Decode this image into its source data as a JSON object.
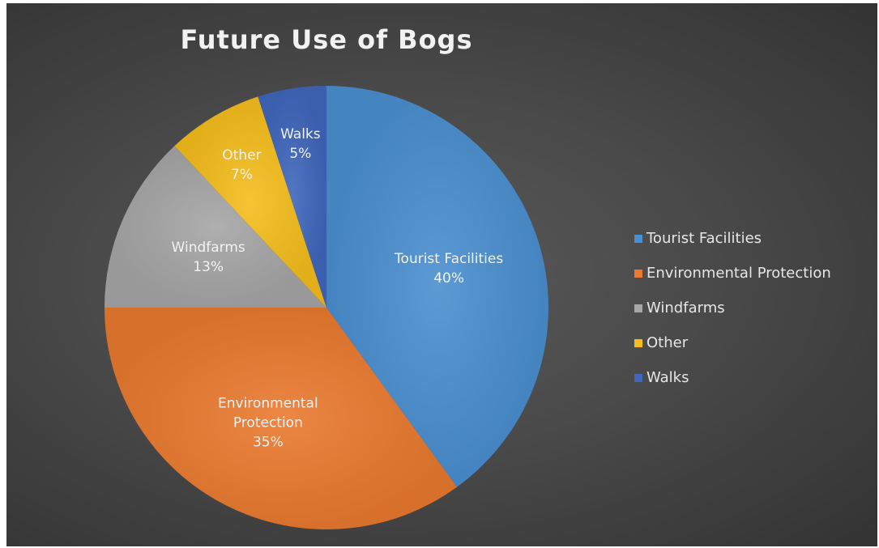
{
  "chart_data": {
    "type": "pie",
    "title": "Future Use of Bogs",
    "start_angle_deg": 0,
    "direction": "clockwise",
    "legend": "right",
    "slices": [
      {
        "name": "Tourist Facilities",
        "value": 40,
        "label_lines": [
          "Tourist Facilities",
          "40%"
        ],
        "color": "#4a8fd0"
      },
      {
        "name": "Environmental Protection",
        "value": 35,
        "label_lines": [
          "Environmental",
          "Protection",
          "35%"
        ],
        "color": "#ea7a2f"
      },
      {
        "name": "Windfarms",
        "value": 13,
        "label_lines": [
          "Windfarms",
          "13%"
        ],
        "color": "#a6a6a6"
      },
      {
        "name": "Other",
        "value": 7,
        "label_lines": [
          "Other",
          "7%"
        ],
        "color": "#f5be1c"
      },
      {
        "name": "Walks",
        "value": 5,
        "label_lines": [
          "Walks",
          "5%"
        ],
        "color": "#4067bc"
      }
    ]
  }
}
